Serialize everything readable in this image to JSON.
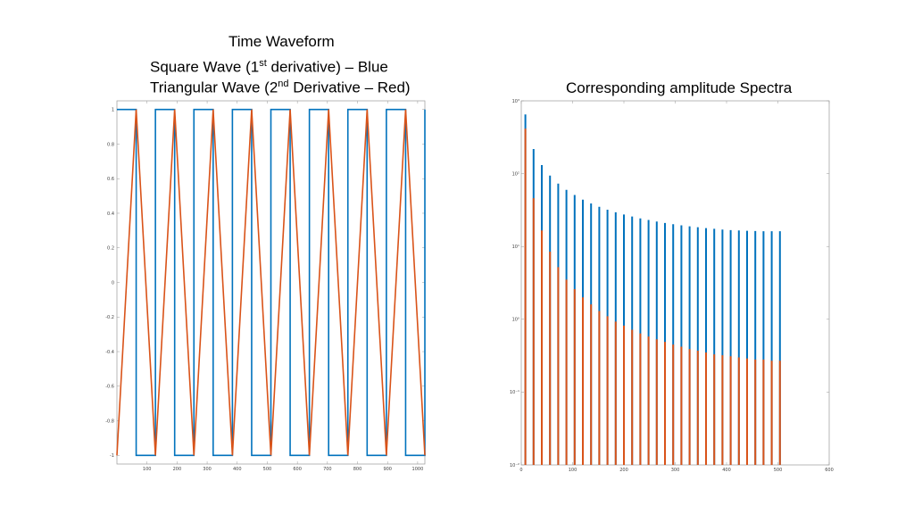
{
  "titles": {
    "line1": "Time Waveform",
    "line2_pre": "Square Wave (1",
    "line2_sup": "st",
    "line2_post": " derivative) – Blue",
    "line3_pre": "Triangular Wave (2",
    "line3_sup": "nd",
    "line3_post": " Derivative – Red)",
    "right": "Corresponding amplitude Spectra"
  },
  "colors": {
    "blue": "#0072BD",
    "red": "#D95319",
    "axis": "#999999"
  },
  "chart_data": [
    {
      "type": "line",
      "xlim": [
        0,
        1024
      ],
      "ylim": [
        -1.05,
        1.05
      ],
      "x_ticks": [
        "100",
        "200",
        "300",
        "400",
        "500",
        "600",
        "700",
        "800",
        "900",
        "1000"
      ],
      "x_tick_values": [
        100,
        200,
        300,
        400,
        500,
        600,
        700,
        800,
        900,
        1000
      ],
      "y_ticks": [
        "1",
        "0.8",
        "0.6",
        "0.4",
        "0.2",
        "0",
        "-0.2",
        "-0.4",
        "-0.6",
        "-0.8",
        "-1"
      ],
      "y_tick_values": [
        1,
        0.8,
        0.6,
        0.4,
        0.2,
        0,
        -0.2,
        -0.4,
        -0.6,
        -0.8,
        -1
      ],
      "series": [
        {
          "color": "blue",
          "x": [
            0,
            64,
            64,
            128,
            128,
            192,
            192,
            256,
            256,
            320,
            320,
            384,
            384,
            448,
            448,
            512,
            512,
            576,
            576,
            640,
            640,
            704,
            704,
            768,
            768,
            832,
            832,
            896,
            896,
            960,
            960,
            1024,
            1024
          ],
          "y": [
            1,
            1,
            -1,
            -1,
            1,
            1,
            -1,
            -1,
            1,
            1,
            -1,
            -1,
            1,
            1,
            -1,
            -1,
            1,
            1,
            -1,
            -1,
            1,
            1,
            -1,
            -1,
            1,
            1,
            -1,
            -1,
            1,
            1,
            -1,
            -1,
            1
          ]
        },
        {
          "color": "red",
          "x": [
            0,
            64,
            128,
            192,
            256,
            320,
            384,
            448,
            512,
            576,
            640,
            704,
            768,
            832,
            896,
            960,
            1024
          ],
          "y": [
            -1,
            1,
            -1,
            1,
            -1,
            1,
            -1,
            1,
            -1,
            1,
            -1,
            1,
            -1,
            1,
            -1,
            1,
            -1
          ]
        }
      ]
    },
    {
      "type": "bar",
      "yscale": "log",
      "xlim": [
        0,
        600
      ],
      "ylim": [
        0.01,
        1000
      ],
      "x_ticks": [
        "0",
        "100",
        "200",
        "300",
        "400",
        "500",
        "600"
      ],
      "x_tick_values": [
        0,
        100,
        200,
        300,
        400,
        500,
        600
      ],
      "y_ticks": [
        "10³",
        "10²",
        "10¹",
        "10⁰",
        "10⁻¹",
        "10⁻²"
      ],
      "y_tick_values": [
        1000,
        100,
        10,
        1,
        0.1,
        0.01
      ],
      "series": [
        {
          "color": "blue",
          "x": [
            8,
            24,
            40,
            56,
            72,
            88,
            104,
            120,
            136,
            152,
            168,
            184,
            200,
            216,
            232,
            248,
            264,
            280,
            296,
            312,
            328,
            344,
            360,
            376,
            392,
            408,
            424,
            440,
            456,
            472,
            488,
            504
          ],
          "y": [
            650,
            218,
            131,
            94,
            73,
            60,
            51,
            44,
            39,
            35,
            32,
            29.5,
            27.5,
            25.8,
            24.3,
            23.1,
            22,
            21,
            20.2,
            19.5,
            18.9,
            18.4,
            17.9,
            17.5,
            17.1,
            16.8,
            16.6,
            16.4,
            16.3,
            16.2,
            16.2,
            16.2
          ]
        },
        {
          "color": "red",
          "x": [
            8,
            24,
            40,
            56,
            72,
            88,
            104,
            120,
            136,
            152,
            168,
            184,
            200,
            216,
            232,
            248,
            264,
            280,
            296,
            312,
            328,
            344,
            360,
            376,
            392,
            408,
            424,
            440,
            456,
            472,
            488,
            504
          ],
          "y": [
            415,
            46,
            16.6,
            8.5,
            5.2,
            3.5,
            2.6,
            2.0,
            1.6,
            1.3,
            1.1,
            0.93,
            0.82,
            0.72,
            0.64,
            0.58,
            0.53,
            0.49,
            0.45,
            0.42,
            0.39,
            0.37,
            0.35,
            0.33,
            0.32,
            0.31,
            0.3,
            0.29,
            0.28,
            0.28,
            0.27,
            0.27
          ]
        }
      ]
    }
  ]
}
